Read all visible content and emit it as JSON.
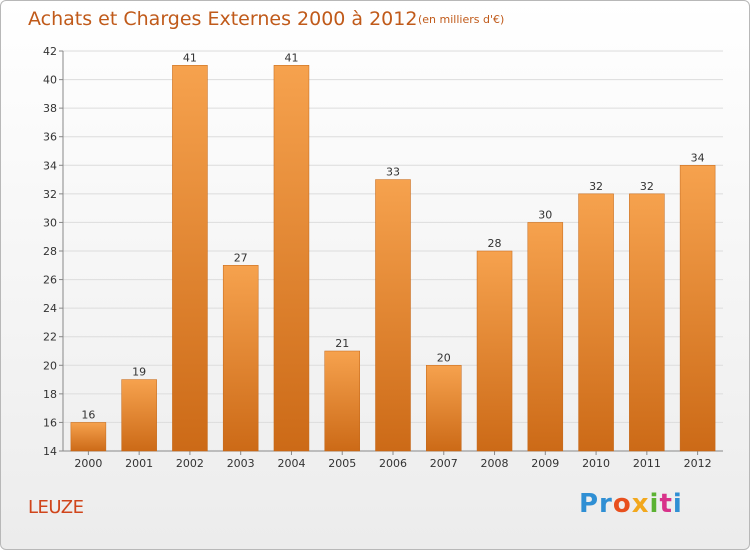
{
  "chart_data": {
    "type": "bar",
    "title": "Achats et Charges Externes 2000 à 2012",
    "subtitle": "(en milliers d'€)",
    "categories": [
      "2000",
      "2001",
      "2002",
      "2003",
      "2004",
      "2005",
      "2006",
      "2007",
      "2008",
      "2009",
      "2010",
      "2011",
      "2012"
    ],
    "values": [
      16,
      19,
      41,
      27,
      41,
      21,
      33,
      20,
      28,
      30,
      32,
      32,
      34
    ],
    "ylim": [
      14,
      42
    ],
    "yticks": [
      14,
      16,
      18,
      20,
      22,
      24,
      26,
      28,
      30,
      32,
      34,
      36,
      38,
      40,
      42
    ],
    "grid": true,
    "bar_color_top": "#f6a24e",
    "bar_color_bottom": "#cc6a17"
  },
  "commune": "LEUZE",
  "logo": {
    "parts": [
      "Pr",
      "o",
      "x",
      "i",
      "t",
      "i"
    ]
  }
}
